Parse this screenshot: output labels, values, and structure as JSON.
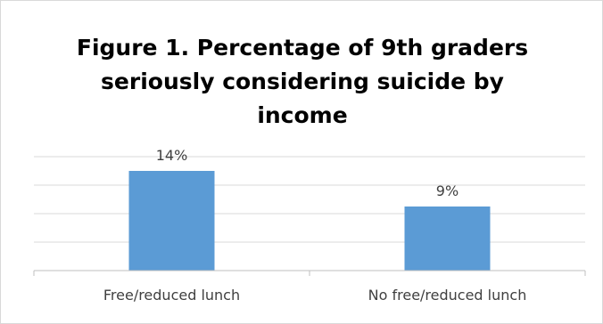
{
  "chart_data": {
    "type": "bar",
    "title": "Figure 1. Percentage of 9th graders seriously considering suicide by income",
    "categories": [
      "Free/reduced lunch",
      "No free/reduced lunch"
    ],
    "values": [
      14,
      9
    ],
    "data_labels": [
      "14%",
      "9%"
    ],
    "xlabel": "",
    "ylabel": "",
    "ylim": [
      0,
      16
    ],
    "grid": true,
    "legend": "none",
    "colors": {
      "bar": "#5b9bd5",
      "gridline": "#d9d9d9",
      "axis": "#bfbfbf",
      "label": "#404040"
    }
  }
}
